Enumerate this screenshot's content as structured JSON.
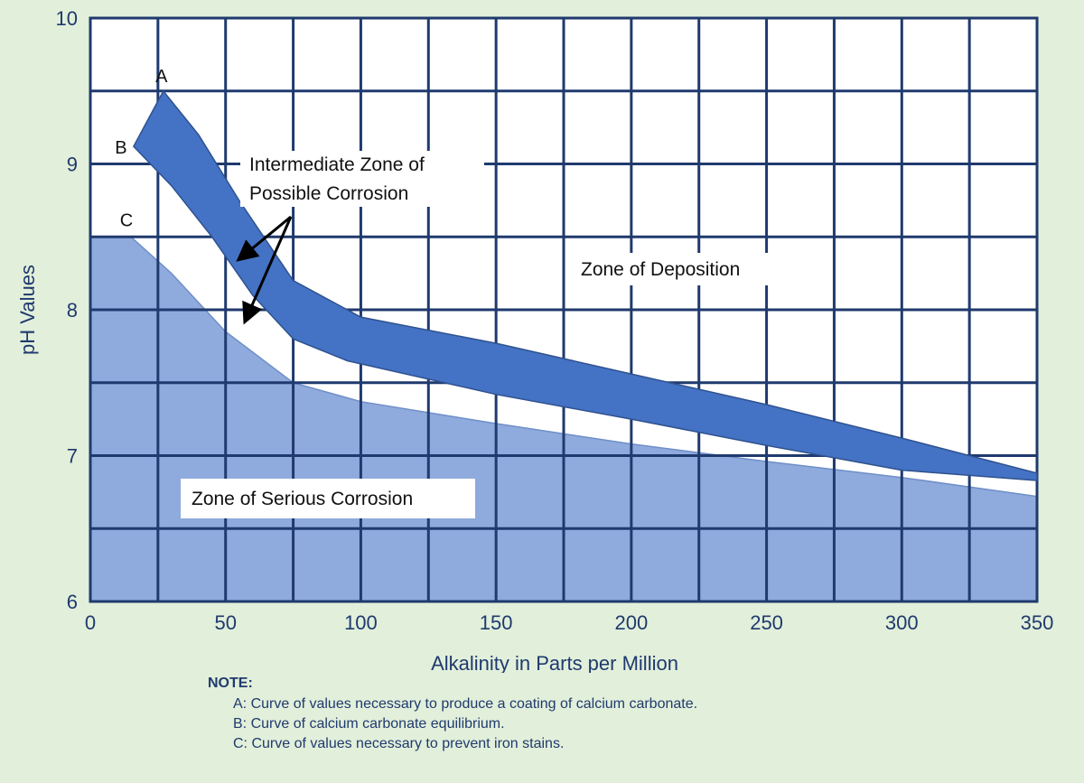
{
  "chart_data": {
    "type": "area",
    "title": "",
    "xlabel": "Alkalinity in Parts per Million",
    "ylabel": "pH Values",
    "xlim": [
      0,
      350
    ],
    "ylim": [
      6,
      10
    ],
    "x_ticks": [
      0,
      50,
      100,
      150,
      200,
      250,
      300,
      350
    ],
    "y_ticks": [
      6,
      7,
      8,
      9,
      10
    ],
    "grid": true,
    "series": [
      {
        "name": "A",
        "x": [
          27,
          40,
          55,
          75,
          100,
          150,
          200,
          250,
          300,
          350
        ],
        "y": [
          9.5,
          9.2,
          8.75,
          8.2,
          7.95,
          7.77,
          7.56,
          7.35,
          7.12,
          6.88
        ]
      },
      {
        "name": "B",
        "x": [
          16,
          30,
          45,
          60,
          75,
          95,
          150,
          200,
          250,
          300,
          350
        ],
        "y": [
          9.12,
          8.85,
          8.5,
          8.1,
          7.8,
          7.65,
          7.42,
          7.25,
          7.07,
          6.9,
          6.83
        ]
      },
      {
        "name": "C",
        "x": [
          0,
          15,
          30,
          50,
          75,
          100,
          150,
          200,
          250,
          300,
          350
        ],
        "y": [
          8.5,
          8.5,
          8.25,
          7.85,
          7.5,
          7.37,
          7.22,
          7.08,
          6.96,
          6.85,
          6.72
        ]
      }
    ],
    "annotations": {
      "intermediate_line1": "Intermediate Zone of",
      "intermediate_line2": "Possible Corrosion",
      "deposition": "Zone of Deposition",
      "serious": "Zone of Serious Corrosion"
    },
    "colors": {
      "band": "#4472c4",
      "serious_fill": "#8faadc",
      "grid": "#1f3a6e",
      "background": "#e2efda"
    }
  },
  "notes": {
    "title": "NOTE:",
    "lines": [
      "A: Curve of values necessary to produce a coating of calcium carbonate.",
      "B: Curve of calcium carbonate equilibrium.",
      "C: Curve of values necessary to prevent iron stains."
    ]
  }
}
